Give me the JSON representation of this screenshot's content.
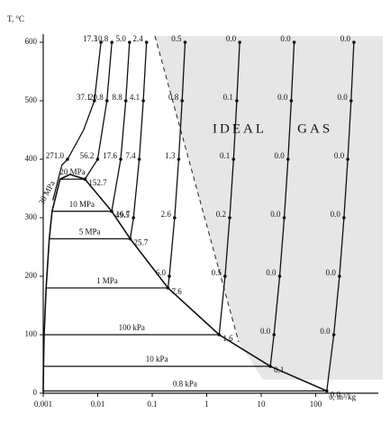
{
  "chart_data": {
    "type": "line",
    "xscale": "log",
    "ylabel": "T, °C",
    "xlabel": "υ, m³/kg",
    "annotation": "IDEAL GAS",
    "xlim": [
      0.001,
      1000
    ],
    "ylim": [
      0,
      600
    ],
    "xticks": [
      0.001,
      0.01,
      0.1,
      1,
      10,
      100
    ],
    "yticks": [
      0,
      100,
      200,
      300,
      400,
      500,
      600
    ],
    "dome": {
      "x": [
        0.001,
        0.00101,
        0.00104,
        0.00113,
        0.00129,
        0.00145,
        0.00204,
        0.0031,
        0.00583,
        0.01803,
        0.03944,
        0.1944,
        1.694,
        14.67,
        159.6
      ],
      "values": [
        0,
        46,
        100,
        180,
        264,
        311,
        366,
        374,
        366,
        311,
        264,
        180,
        100,
        46,
        3.8
      ]
    },
    "series": [
      {
        "name": "30 MPa",
        "color": "#111",
        "x": [
          0.0015,
          0.0022,
          0.00279,
          0.0055,
          0.00868,
          0.01145
        ],
        "values": [
          330,
          390,
          400,
          450,
          500,
          600
        ],
        "point_labels": [
          null,
          null,
          "271.0",
          null,
          "37.1",
          "17.3"
        ]
      },
      {
        "name": "20 MPa",
        "color": "#111",
        "x": [
          0.00204,
          0.00583,
          0.00995,
          0.01477,
          0.01818
        ],
        "values": [
          366,
          366,
          400,
          500,
          600
        ],
        "point_labels": [
          null,
          "152.7",
          "56.2",
          "20.8",
          "10.8"
        ]
      },
      {
        "name": "10 MPa",
        "color": "#111",
        "x": [
          0.00145,
          0.01803,
          0.02641,
          0.03279,
          0.03837
        ],
        "values": [
          311,
          311,
          400,
          500,
          600
        ],
        "point_labels": [
          null,
          "49.5",
          "17.6",
          "8.8",
          "5.0"
        ]
      },
      {
        "name": "5 MPa",
        "color": "#111",
        "x": [
          0.00129,
          0.03944,
          0.04532,
          0.05781,
          0.06857,
          0.07869
        ],
        "values": [
          264,
          264,
          300,
          400,
          500,
          600
        ],
        "point_labels": [
          null,
          "25.7",
          "16.7",
          "7.4",
          "4.1",
          "2.4"
        ]
      },
      {
        "name": "1 MPa",
        "color": "#111",
        "x": [
          0.00113,
          0.1944,
          0.206,
          0.2579,
          0.3066,
          0.3541,
          0.4011
        ],
        "values": [
          180,
          180,
          200,
          300,
          400,
          500,
          600
        ],
        "point_labels": [
          null,
          "7.6",
          "6.0",
          "2.6",
          "1.3",
          "0.8",
          "0.5"
        ]
      },
      {
        "name": "100 kPa",
        "color": "#111",
        "x": [
          0.00104,
          1.694,
          2.172,
          2.639,
          3.103,
          3.565,
          4.028
        ],
        "values": [
          100,
          100,
          200,
          300,
          400,
          500,
          600
        ],
        "point_labels": [
          null,
          "1.6",
          "0.5",
          "0.2",
          "0.1",
          "0.1",
          "0.0"
        ]
      },
      {
        "name": "10 kPa",
        "color": "#111",
        "x": [
          0.00101,
          14.67,
          17.196,
          21.825,
          26.445,
          31.063,
          35.68,
          40.29
        ],
        "values": [
          46,
          46,
          100,
          200,
          300,
          400,
          500,
          600
        ],
        "point_labels": [
          null,
          "0.1",
          "0.0",
          "0.0",
          "0.0",
          "0.0",
          "0.0",
          "0.0"
        ]
      },
      {
        "name": "0.8 kPa",
        "color": "#111",
        "x": [
          0.001,
          159.6,
          215,
          273,
          330,
          388,
          446,
          503
        ],
        "values": [
          3.8,
          3.8,
          100,
          200,
          300,
          400,
          500,
          600
        ],
        "point_labels": [
          null,
          "0.0",
          "0.0",
          "0.0",
          "0.0",
          "0.0",
          "0.0",
          "0.0"
        ]
      }
    ]
  }
}
